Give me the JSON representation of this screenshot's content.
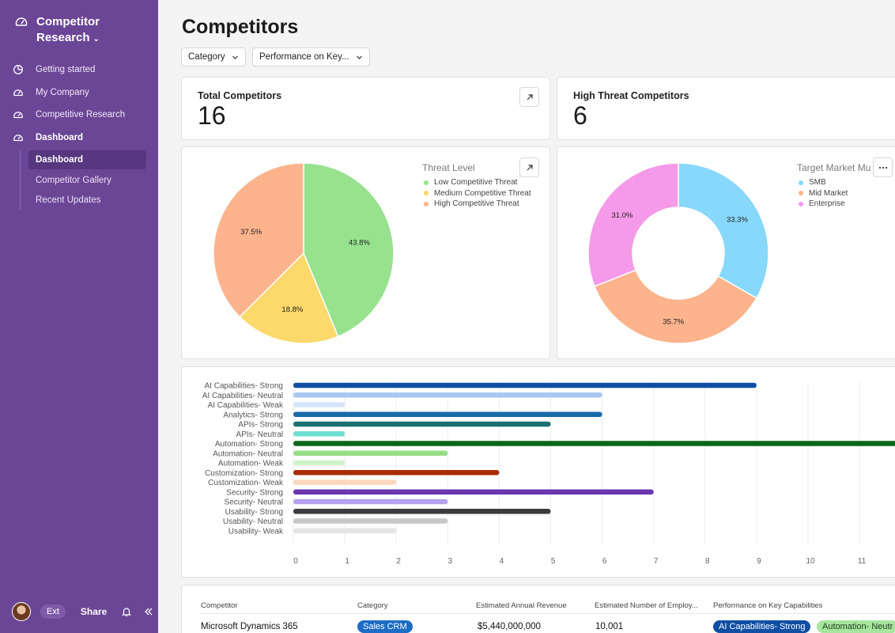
{
  "sidebar": {
    "workspace_line1": "Competitor",
    "workspace_line2": "Research",
    "nav": [
      {
        "label": "Getting started",
        "icon": "pie-icon"
      },
      {
        "label": "My Company",
        "icon": "gauge-icon"
      },
      {
        "label": "Competitive Research",
        "icon": "gauge-icon"
      },
      {
        "label": "Dashboard",
        "icon": "gauge-icon"
      }
    ],
    "subnav": [
      "Dashboard",
      "Competitor Gallery",
      "Recent Updates"
    ],
    "footer": {
      "ext": "Ext",
      "share": "Share"
    }
  },
  "page": {
    "title": "Competitors",
    "filters": [
      "Category",
      "Performance on Key..."
    ]
  },
  "kpis": [
    {
      "label": "Total Competitors",
      "value": "16"
    },
    {
      "label": "High Threat Competitors",
      "value": "6"
    }
  ],
  "colors": {
    "sidebar": "#6b4596",
    "low": "#98e28f",
    "medium": "#fdd96b",
    "high": "#fdb38c",
    "smb": "#87d8fb",
    "mid": "#fdb38c",
    "enterprise": "#f59ae9"
  },
  "chart_data": [
    {
      "type": "pie",
      "title": "Threat Level",
      "slices": [
        {
          "label": "Low Competitive Threat",
          "value": 43.8,
          "display": "43.8%",
          "color": "#98e28f"
        },
        {
          "label": "Medium Competitive Threat",
          "value": 18.8,
          "display": "18.8%",
          "color": "#fdd96b"
        },
        {
          "label": "High Competitive Threat",
          "value": 37.5,
          "display": "37.5%",
          "color": "#fdb38c"
        }
      ]
    },
    {
      "type": "pie",
      "title": "Target Market Mu",
      "donut": true,
      "slices": [
        {
          "label": "SMB",
          "value": 33.3,
          "display": "33.3%",
          "color": "#87d8fb"
        },
        {
          "label": "Mid Market",
          "value": 35.7,
          "display": "35.7%",
          "color": "#fdb38c"
        },
        {
          "label": "Enterprise",
          "value": 31.0,
          "display": "31.0%",
          "color": "#f59ae9"
        }
      ]
    },
    {
      "type": "bar",
      "orientation": "horizontal",
      "categories": [
        "AI Capabilities- Strong",
        "AI Capabilities- Neutral",
        "AI Capabilities- Weak",
        "Analytics- Strong",
        "APIs- Strong",
        "APIs- Neutral",
        "Automation- Strong",
        "Automation- Neutral",
        "Automation- Weak",
        "Customization- Strong",
        "Customization- Weak",
        "Security- Strong",
        "Security- Neutral",
        "Usability- Strong",
        "Usability- Neutral",
        "Usability- Weak"
      ],
      "values": [
        9,
        6,
        1,
        6,
        5,
        1,
        12,
        3,
        1,
        4,
        2,
        7,
        3,
        5,
        3,
        2
      ],
      "colors": [
        "#0f4fa3",
        "#a7c8f3",
        "#d6e5fb",
        "#1a6aa8",
        "#1a6f73",
        "#6de0d2",
        "#0a6616",
        "#95de86",
        "#cff3c8",
        "#a62d06",
        "#fdd7bd",
        "#6a35b0",
        "#b6a2f0",
        "#3c3c3e",
        "#c6c7c9",
        "#e3e4e6"
      ],
      "x_ticks": [
        "0",
        "1",
        "2",
        "3",
        "4",
        "5",
        "6",
        "7",
        "8",
        "9",
        "10",
        "11"
      ],
      "xlim": [
        0,
        12
      ],
      "grid": true
    }
  ],
  "table": {
    "headers": [
      "Competitor",
      "Category",
      "Estimated Annual Revenue",
      "Estimated Number of Employ...",
      "Performance on Key Capabilities"
    ],
    "rows": [
      {
        "competitor": "Microsoft Dynamics 365",
        "category": "Sales CRM",
        "revenue": "$5,440,000,000",
        "employees": "10,001",
        "capabilities": [
          "AI Capabilities- Strong",
          "Automation- Neutr"
        ]
      }
    ]
  }
}
